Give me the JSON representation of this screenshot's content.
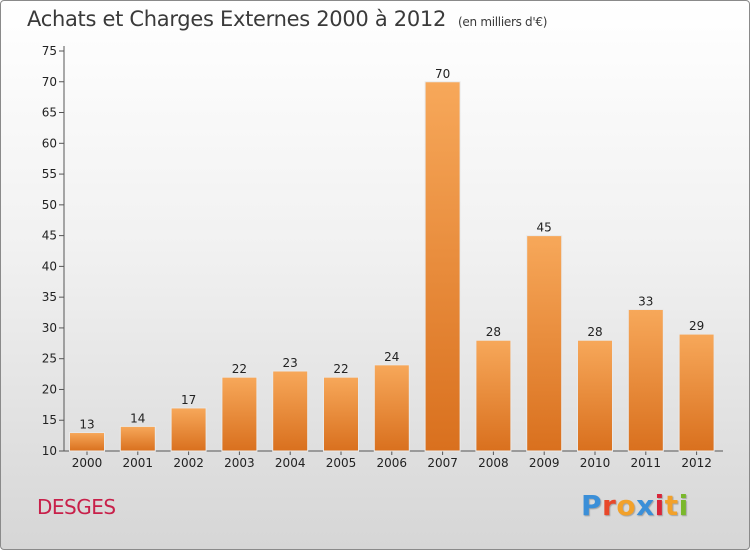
{
  "header": {
    "title": "Achats et Charges Externes 2000 à 2012",
    "subtitle": "(en milliers d'€)"
  },
  "footer": {
    "commune": "DESGES",
    "logo_text": "Proxiti",
    "logo_colors": [
      "#3b8fd8",
      "#e8482a",
      "#f2a12a",
      "#3b8fd8",
      "#d8263a",
      "#f2a12a",
      "#7ab82c"
    ]
  },
  "colors": {
    "bar_top": "#f7a85a",
    "bar_bottom": "#d9701e",
    "title": "#3a3a3a",
    "commune": "#c8204a"
  },
  "chart_data": {
    "type": "bar",
    "title": "Achats et Charges Externes 2000 à 2012",
    "subtitle": "(en milliers d'€)",
    "categories": [
      "2000",
      "2001",
      "2002",
      "2003",
      "2004",
      "2005",
      "2006",
      "2007",
      "2008",
      "2009",
      "2010",
      "2011",
      "2012"
    ],
    "values": [
      13,
      14,
      17,
      22,
      23,
      22,
      24,
      70,
      28,
      45,
      28,
      33,
      29
    ],
    "ylim": [
      10,
      75
    ],
    "yticks": [
      10,
      15,
      20,
      25,
      30,
      35,
      40,
      45,
      50,
      55,
      60,
      65,
      70,
      75
    ],
    "grid": false
  }
}
